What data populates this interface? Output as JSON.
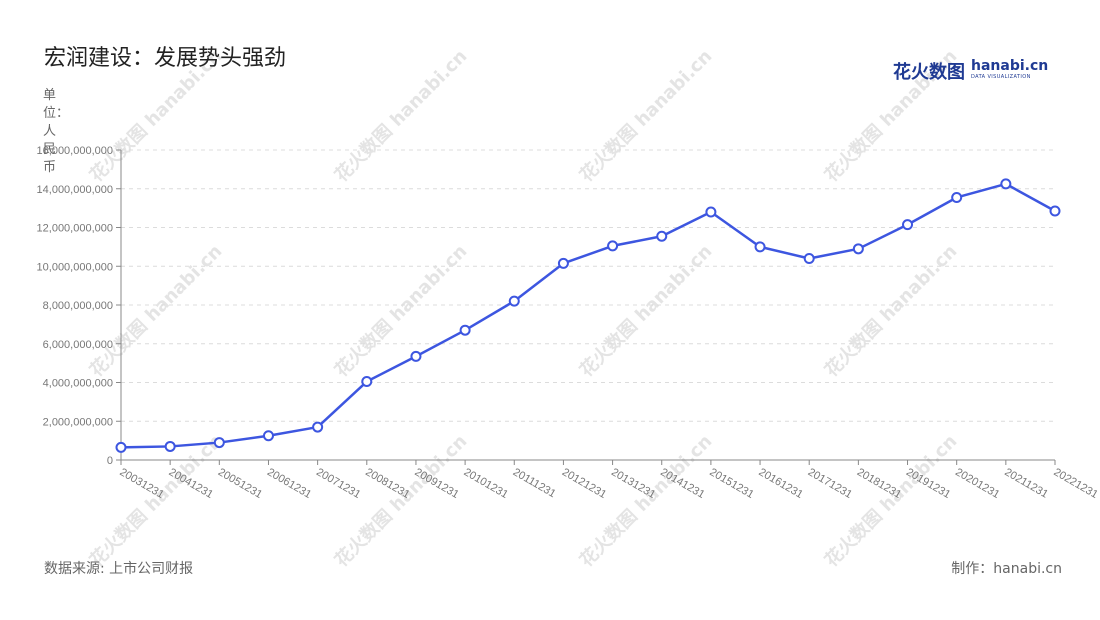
{
  "title": "宏润建设：发展势头强劲",
  "logo": {
    "cn": "花火数图",
    "en": "hanabi.cn",
    "sub": "DATA VISUALIZATION"
  },
  "watermark": "花火数图 hanabi.cn",
  "unit_label": "单位：人民币",
  "footer": {
    "source": "数据来源: 上市公司财报",
    "made_by": "制作：hanabi.cn"
  },
  "colors": {
    "line": "#3d56e0",
    "grid": "#dcdcdc",
    "logo": "#1f3a93"
  },
  "chart_data": {
    "type": "line",
    "title": "宏润建设：发展势头强劲",
    "ylabel": "单位：人民币",
    "xlabel": "",
    "categories": [
      "20031231",
      "20041231",
      "20051231",
      "20061231",
      "20071231",
      "20081231",
      "20091231",
      "20101231",
      "20111231",
      "20121231",
      "20131231",
      "20141231",
      "20151231",
      "20161231",
      "20171231",
      "20181231",
      "20191231",
      "20201231",
      "20211231",
      "20221231"
    ],
    "series": [
      {
        "values": [
          650000000,
          700000000,
          900000000,
          1250000000,
          1700000000,
          4050000000,
          5350000000,
          6700000000,
          8200000000,
          10150000000,
          11050000000,
          11550000000,
          12800000000,
          11000000000,
          10400000000,
          10900000000,
          12150000000,
          13550000000,
          14250000000,
          12850000000
        ]
      }
    ],
    "ylim": [
      0,
      16000000000
    ],
    "yticks": [
      0,
      2000000000,
      4000000000,
      6000000000,
      8000000000,
      10000000000,
      12000000000,
      14000000000,
      16000000000
    ],
    "ytick_labels": [
      "0",
      "2,000,000,000",
      "4,000,000,000",
      "6,000,000,000",
      "8,000,000,000",
      "10,000,000,000",
      "12,000,000,000",
      "14,000,000,000",
      "16,000,000,000"
    ],
    "grid": true,
    "legend": "none"
  }
}
